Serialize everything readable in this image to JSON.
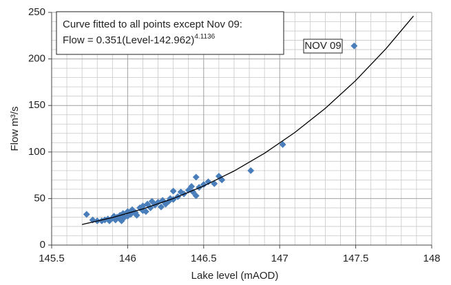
{
  "chart_data": {
    "type": "scatter",
    "x_label": "Lake level (mAOD)",
    "y_label": "Flow m³/s",
    "annotation": {
      "line1": "Curve fitted to all points except Nov 09:",
      "formula": "Flow = 0.351(Level-142.962)",
      "exponent": "4.1136"
    },
    "point_label": "NOV 09",
    "xlim": [
      145.5,
      148
    ],
    "xticks": [
      145.5,
      146,
      146.5,
      147,
      147.5,
      148
    ],
    "ylim": [
      0,
      250
    ],
    "yticks": [
      0,
      50,
      100,
      150,
      200,
      250
    ],
    "grid": true,
    "series": [
      {
        "color": "#4a7ebb",
        "x": [
          145.73,
          145.77,
          145.8,
          145.83,
          145.85,
          145.87,
          145.88,
          145.9,
          145.91,
          145.92,
          145.93,
          145.95,
          145.95,
          145.96,
          145.97,
          145.98,
          146.0,
          146.0,
          146.02,
          146.03,
          146.05,
          146.06,
          146.08,
          146.1,
          146.1,
          146.12,
          146.13,
          146.15,
          146.16,
          146.18,
          146.2,
          146.22,
          146.23,
          146.25,
          146.27,
          146.28,
          146.3,
          146.3,
          146.33,
          146.35,
          146.37,
          146.4,
          146.42,
          146.43,
          146.45,
          146.45,
          146.47,
          146.5,
          146.53,
          146.57,
          146.6,
          146.62,
          146.81,
          147.02,
          147.49
        ],
        "values": [
          33,
          27,
          26,
          26,
          27,
          28,
          26,
          29,
          31,
          27,
          30,
          28,
          32,
          26,
          34,
          30,
          31,
          36,
          33,
          38,
          35,
          32,
          40,
          37,
          42,
          36,
          44,
          40,
          47,
          43,
          46,
          41,
          48,
          44,
          47,
          50,
          49,
          58,
          52,
          57,
          55,
          59,
          63,
          57,
          53,
          73,
          62,
          65,
          68,
          66,
          74,
          70,
          80,
          108,
          214
        ]
      },
      {
        "type": "line",
        "color": "#000000",
        "x": [
          145.7,
          145.9,
          146.1,
          146.3,
          146.5,
          146.7,
          146.9,
          147.1,
          147.3,
          147.5,
          147.7,
          147.88
        ],
        "values": [
          22.1,
          29.6,
          38.8,
          50.0,
          63.5,
          79.6,
          98.6,
          121.0,
          146.9,
          176.8,
          211.1,
          246.1
        ]
      }
    ]
  }
}
